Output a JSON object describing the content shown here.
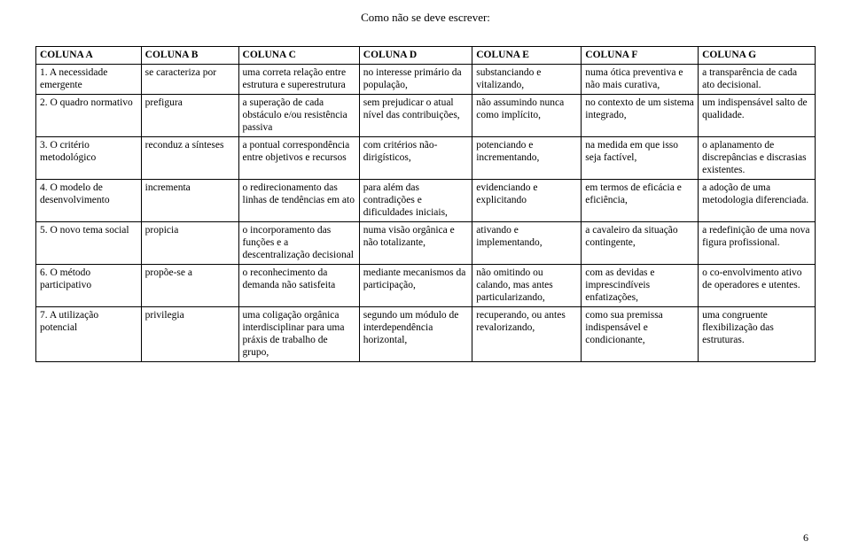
{
  "title": "Como não se deve escrever:",
  "pageNumber": "6",
  "columns": [
    "COLUNA A",
    "COLUNA B",
    "COLUNA C",
    "COLUNA D",
    "COLUNA E",
    "COLUNA F",
    "COLUNA G"
  ],
  "rows": [
    {
      "a": "1.  A necessidade emergente",
      "b": "se caracteriza por",
      "c": "uma correta relação entre estrutura e superestrutura",
      "d": "no interesse primário da população,",
      "e": "substanciando e vitalizando,",
      "f": "numa ótica preventiva e não mais curativa,",
      "g": "a transparência de cada ato decisional."
    },
    {
      "a": "2.  O quadro normativo",
      "b": "prefigura",
      "c": "a superação de cada obstáculo e/ou resistência passiva",
      "d": "sem prejudicar o atual nível das contribuições,",
      "e": "não assumindo nunca como implícito,",
      "f": "no contexto de um sistema integrado,",
      "g": "um indispensável salto de qualidade."
    },
    {
      "a": "3.  O critério metodológico",
      "b": "reconduz a sínteses",
      "c": "a pontual correspondência entre objetivos e recursos",
      "d": "com critérios não-dirigísticos,",
      "e": "potenciando e incrementando,",
      "f": "na medida em que isso seja factível,",
      "g": "o aplanamento de discrepâncias e discrasias existentes."
    },
    {
      "a": "4.  O modelo de desenvolvimento",
      "b": "incrementa",
      "c": "o redirecionamento das linhas de tendências em ato",
      "d": "para além das contradições e dificuldades iniciais,",
      "e": "evidenciando e explicitando",
      "f": "em termos de eficácia e eficiência,",
      "g": "a adoção de uma metodologia diferenciada."
    },
    {
      "a": "5.  O novo tema social",
      "b": "propicia",
      "c": "o incorporamento das funções e a descentralização decisional",
      "d": "numa visão orgânica e não totalizante,",
      "e": "ativando e implementando,",
      "f": "a cavaleiro da situação contingente,",
      "g": "a redefinição de uma nova figura profissional."
    },
    {
      "a": "6.  O método participativo",
      "b": "propõe-se a",
      "c": "o reconhecimento da demanda não satisfeita",
      "d": "mediante mecanismos da participação,",
      "e": "não omitindo ou calando, mas antes particularizando,",
      "f": "com as devidas e imprescindíveis enfatizações,",
      "g": "o co-envolvimento ativo de operadores e utentes."
    },
    {
      "a": "7.  A utilização potencial",
      "b": "privilegia",
      "c": "uma coligação orgânica interdisciplinar para uma práxis de trabalho de grupo,",
      "d": "segundo um módulo de interdependência horizontal,",
      "e": "recuperando, ou antes revalorizando,",
      "f": "como sua premissa indispensável e condicionante,",
      "g": "uma congruente flexibilização das estruturas."
    }
  ]
}
